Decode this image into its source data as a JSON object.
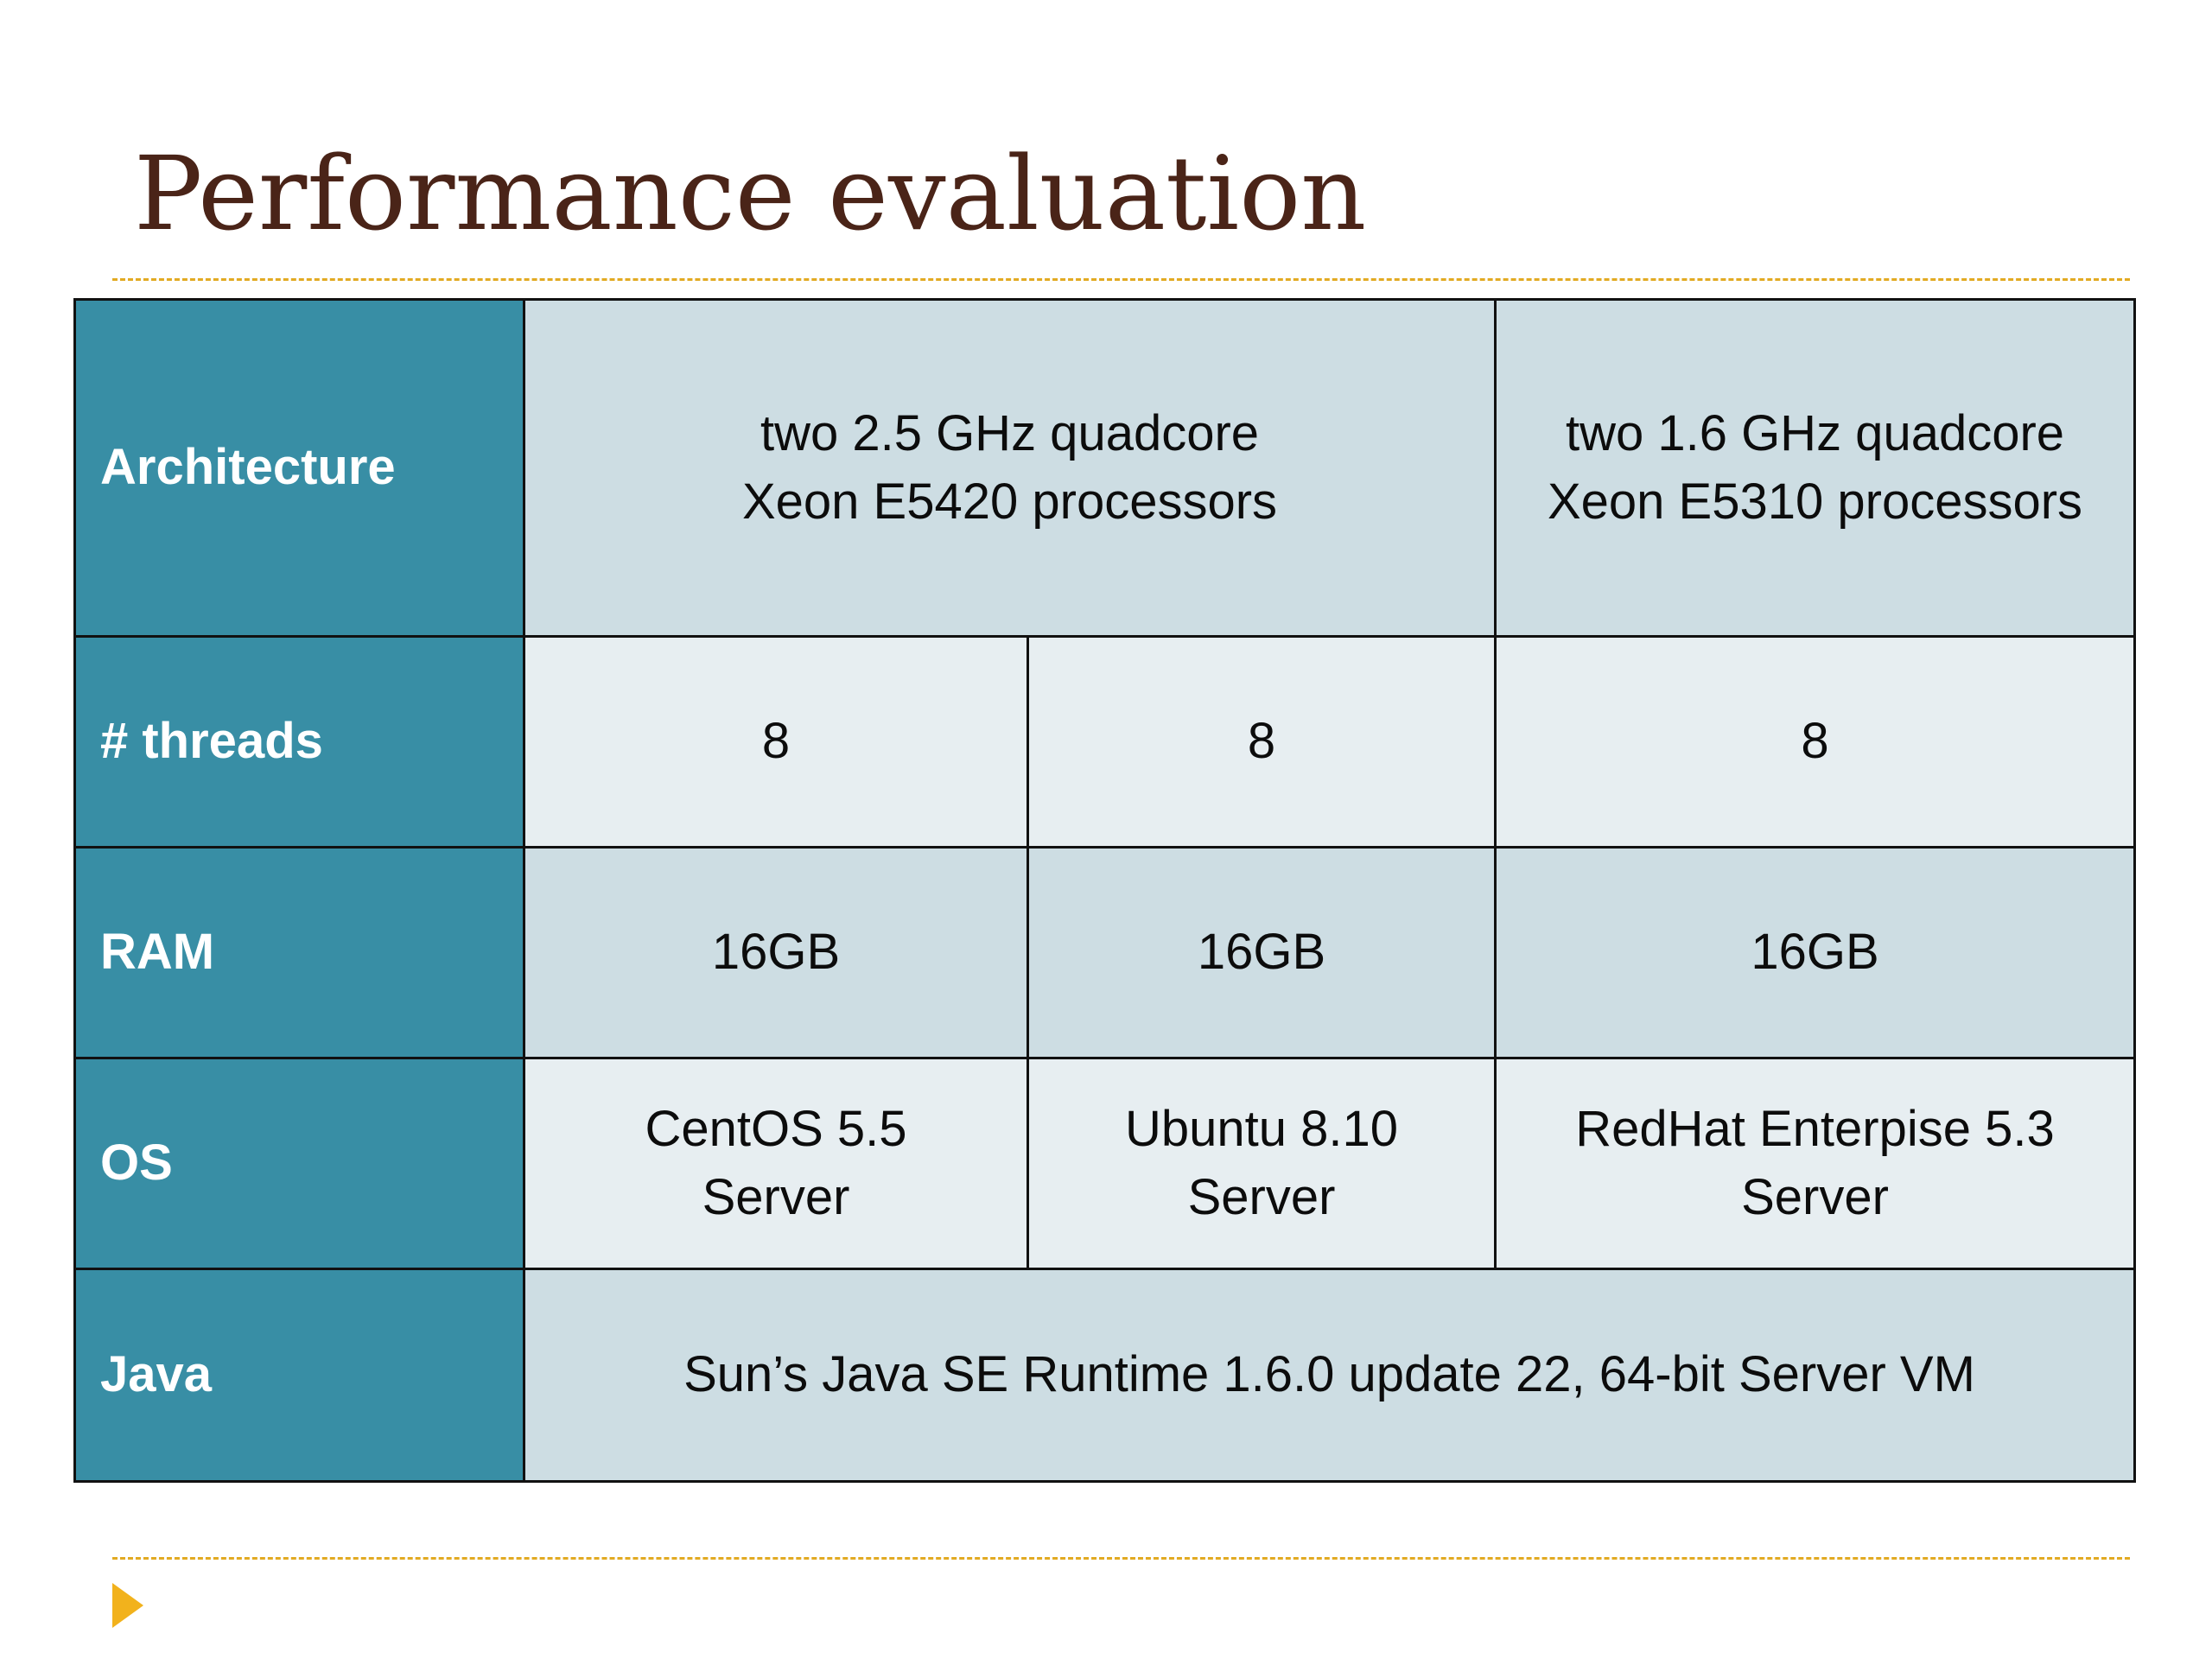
{
  "slide": {
    "title": "Performance evaluation",
    "accent_color": "#e2aa22",
    "header_color": "#388ea5",
    "title_color": "#4a2418",
    "bullet_icon": "triangle-right-icon"
  },
  "table": {
    "rows": {
      "architecture": {
        "label": "Architecture",
        "col1_line1": "two 2.5 GHz quadcore",
        "col1_line2": "Xeon E5420 processors",
        "col2_line1": "two 1.6 GHz quadcore",
        "col2_line2": "Xeon E5310 processors"
      },
      "threads": {
        "label": "# threads",
        "values": [
          "8",
          "8",
          "8"
        ]
      },
      "ram": {
        "label": "RAM",
        "values": [
          "16GB",
          "16GB",
          "16GB"
        ]
      },
      "os": {
        "label": "OS",
        "values": [
          {
            "line1": "CentOS 5.5",
            "line2": "Server"
          },
          {
            "line1": "Ubuntu 8.10",
            "line2": "Server"
          },
          {
            "line1": "RedHat Enterpise 5.3",
            "line2": "Server"
          }
        ]
      },
      "java": {
        "label": "Java",
        "value": "Sun’s Java SE Runtime 1.6.0 update 22, 64-bit Server VM"
      }
    }
  }
}
